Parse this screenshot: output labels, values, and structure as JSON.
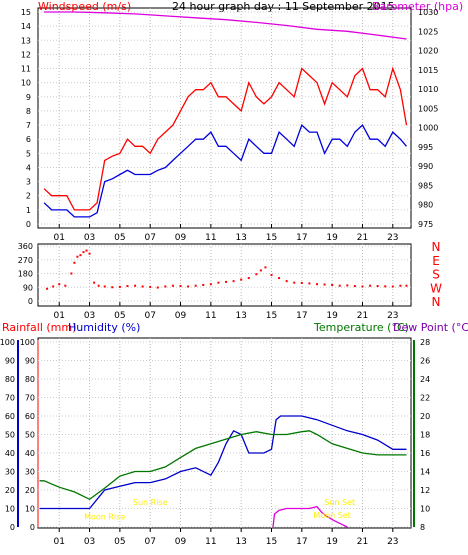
{
  "colors": {
    "wind_speed": "#ff0000",
    "wind_gust": "#ff0000",
    "wind_avg": "#0000dd",
    "barometer": "#dd00dd",
    "wind_dir": "#ff0000",
    "rain_axis": "#ff0000",
    "humidity": "#0000cc",
    "temperature": "#007700",
    "dewpoint_label": "#7a00aa",
    "sun_moon": "#ffee00",
    "frame": "#000000"
  },
  "chart_data": [
    {
      "type": "line",
      "name": "wind-barometer",
      "title": "24 hour graph day : 11 September 2015",
      "left_label": "Windspeed (m/s)",
      "right_label": "Barometer (hpa)",
      "x_ticks": [
        "01",
        "03",
        "05",
        "07",
        "09",
        "11",
        "13",
        "15",
        "17",
        "19",
        "21",
        "23"
      ],
      "ylim_left": [
        0,
        15
      ],
      "y_ticks_left": [
        "0",
        "1",
        "2",
        "3",
        "4",
        "5",
        "6",
        "7",
        "8",
        "9",
        "10",
        "11",
        "12",
        "13",
        "14",
        "15"
      ],
      "ylim_right": [
        975,
        1030
      ],
      "y_ticks_right": [
        "975",
        "980",
        "985",
        "990",
        "995",
        "1000",
        "1005",
        "1010",
        "1015",
        "1020",
        "1025",
        "1030"
      ],
      "series": [
        {
          "key": "gust",
          "x": [
            0,
            0.5,
            1.0,
            1.5,
            2.0,
            2.5,
            3.0,
            3.5,
            4.0,
            4.5,
            5.0,
            5.5,
            6.0,
            6.5,
            7.0,
            7.5,
            8.0,
            8.5,
            9.0,
            9.5,
            10.0,
            10.5,
            11.0,
            11.5,
            12.0,
            12.5,
            13.0,
            13.5,
            14.0,
            14.5,
            15.0,
            15.5,
            16.0,
            16.5,
            17.0,
            17.5,
            18.0,
            18.5,
            19.0,
            19.5,
            20.0,
            20.5,
            21.0,
            21.5,
            22.0,
            22.5,
            23.0,
            23.5,
            23.9
          ],
          "values": [
            2.5,
            2.0,
            2.0,
            2.0,
            1.0,
            1.0,
            1.0,
            1.5,
            4.5,
            4.8,
            5.0,
            6.0,
            5.5,
            5.5,
            5.0,
            6.0,
            6.5,
            7.0,
            8.0,
            9.0,
            9.5,
            9.5,
            10.0,
            9.0,
            9.0,
            8.5,
            8.0,
            10.0,
            9.0,
            8.5,
            9.0,
            10.0,
            9.5,
            9.0,
            11.0,
            10.5,
            10.0,
            8.5,
            10.0,
            9.5,
            9.0,
            10.5,
            11.0,
            9.5,
            9.5,
            9.0,
            11.0,
            9.5,
            7.0
          ]
        },
        {
          "key": "avg",
          "x": [
            0,
            0.5,
            1.0,
            1.5,
            2.0,
            2.5,
            3.0,
            3.5,
            4.0,
            4.5,
            5.0,
            5.5,
            6.0,
            6.5,
            7.0,
            7.5,
            8.0,
            8.5,
            9.0,
            9.5,
            10.0,
            10.5,
            11.0,
            11.5,
            12.0,
            12.5,
            13.0,
            13.5,
            14.0,
            14.5,
            15.0,
            15.5,
            16.0,
            16.5,
            17.0,
            17.5,
            18.0,
            18.5,
            19.0,
            19.5,
            20.0,
            20.5,
            21.0,
            21.5,
            22.0,
            22.5,
            23.0,
            23.5,
            23.9
          ],
          "values": [
            1.5,
            1.0,
            1.0,
            1.0,
            0.5,
            0.5,
            0.5,
            0.8,
            3.0,
            3.2,
            3.5,
            3.8,
            3.5,
            3.5,
            3.5,
            3.8,
            4.0,
            4.5,
            5.0,
            5.5,
            6.0,
            6.0,
            6.5,
            5.5,
            5.5,
            5.0,
            4.5,
            6.0,
            5.5,
            5.0,
            5.0,
            6.5,
            6.0,
            5.5,
            7.0,
            6.5,
            6.5,
            5.0,
            6.0,
            6.0,
            5.5,
            6.5,
            7.0,
            6.0,
            6.0,
            5.5,
            6.5,
            6.0,
            5.5
          ]
        },
        {
          "key": "baro",
          "x": [
            0,
            2,
            4,
            6,
            8,
            10,
            12,
            14,
            16,
            18,
            20,
            22,
            23.9
          ],
          "values": [
            1030,
            1030,
            1029.8,
            1029.5,
            1029,
            1028.5,
            1028,
            1027.3,
            1026.5,
            1025.5,
            1025,
            1024,
            1023
          ]
        }
      ]
    },
    {
      "type": "scatter",
      "name": "wind-direction",
      "x_ticks": [
        "01",
        "03",
        "05",
        "07",
        "09",
        "11",
        "13",
        "15",
        "17",
        "19",
        "21",
        "23"
      ],
      "ylim": [
        0,
        360
      ],
      "y_ticks": [
        "0",
        "90",
        "180",
        "270",
        "360"
      ],
      "compass_labels": [
        "N",
        "W",
        "S",
        "E",
        "N"
      ],
      "x": [
        0.2,
        0.6,
        1.0,
        1.4,
        1.8,
        2.0,
        2.2,
        2.4,
        2.6,
        2.8,
        3.0,
        3.3,
        3.6,
        4.0,
        4.5,
        5.0,
        5.5,
        6.0,
        6.5,
        7.0,
        7.5,
        8.0,
        8.5,
        9.0,
        9.5,
        10.0,
        10.5,
        11.0,
        11.5,
        12.0,
        12.5,
        13.0,
        13.5,
        14.0,
        14.3,
        14.6,
        15.0,
        15.5,
        16.0,
        16.5,
        17.0,
        17.5,
        18.0,
        18.5,
        19.0,
        19.5,
        20.0,
        20.5,
        21.0,
        21.5,
        22.0,
        22.5,
        23.0,
        23.5,
        23.9
      ],
      "values": [
        80,
        95,
        110,
        100,
        180,
        250,
        290,
        300,
        320,
        330,
        310,
        120,
        100,
        95,
        90,
        92,
        98,
        100,
        95,
        92,
        88,
        95,
        100,
        98,
        95,
        100,
        105,
        110,
        120,
        125,
        130,
        140,
        150,
        175,
        200,
        220,
        170,
        150,
        130,
        120,
        118,
        115,
        110,
        108,
        105,
        100,
        102,
        98,
        95,
        100,
        98,
        96,
        95,
        100,
        100
      ]
    },
    {
      "type": "line",
      "name": "rain-humidity-temperature",
      "left_label": "Rainfall (mm)",
      "left_label_2": "Humidity (%)",
      "right_label": "Temperature (°C)",
      "right_label_2": "Dew Point (°C)",
      "x_ticks": [
        "01",
        "03",
        "05",
        "07",
        "09",
        "11",
        "13",
        "15",
        "17",
        "19",
        "21",
        "23"
      ],
      "ylim_left": [
        0,
        100
      ],
      "y_ticks_left": [
        "0",
        "10",
        "20",
        "30",
        "40",
        "50",
        "60",
        "70",
        "80",
        "90",
        "100"
      ],
      "ylim_right": [
        8,
        28
      ],
      "y_ticks_right": [
        "8",
        "10",
        "12",
        "14",
        "16",
        "18",
        "20",
        "22",
        "24",
        "26",
        "28"
      ],
      "series": [
        {
          "key": "humidity",
          "x": [
            -0.3,
            0.0,
            1.0,
            2.0,
            3.0,
            4.0,
            5.0,
            6.0,
            7.0,
            8.0,
            9.0,
            10.0,
            11.0,
            11.5,
            12.0,
            12.5,
            13.0,
            13.5,
            14.0,
            14.5,
            15.0,
            15.3,
            15.6,
            16.0,
            17.0,
            18.0,
            19.0,
            20.0,
            21.0,
            22.0,
            23.0,
            23.9
          ],
          "values": [
            10,
            10,
            10,
            10,
            10,
            20,
            22,
            24,
            24,
            26,
            30,
            32,
            28,
            35,
            45,
            52,
            50,
            40,
            40,
            40,
            42,
            58,
            60,
            60,
            60,
            58,
            55,
            52,
            50,
            47,
            42,
            42
          ]
        },
        {
          "key": "temperature",
          "x": [
            -0.3,
            0.0,
            1.0,
            2.0,
            3.0,
            4.0,
            5.0,
            6.0,
            7.0,
            8.0,
            9.0,
            10.0,
            11.0,
            12.0,
            13.0,
            14.0,
            15.0,
            16.0,
            17.0,
            17.5,
            18.0,
            19.0,
            20.0,
            21.0,
            22.0,
            23.0,
            23.9
          ],
          "values": [
            13.0,
            13.0,
            12.3,
            11.8,
            11.0,
            12.2,
            13.5,
            14.0,
            14.0,
            14.5,
            15.5,
            16.5,
            17.0,
            17.5,
            18.0,
            18.3,
            18.0,
            18.0,
            18.3,
            18.4,
            18.0,
            17.0,
            16.5,
            16.0,
            15.8,
            15.8,
            15.8
          ]
        },
        {
          "key": "rain",
          "x": [
            15.1,
            15.2,
            15.5,
            16.0,
            16.5,
            17.0,
            17.5,
            18.0,
            18.3,
            18.6,
            19.0,
            19.5,
            20.0
          ],
          "values": [
            0,
            7,
            9,
            10,
            10,
            10,
            10,
            11,
            8,
            6,
            4,
            2,
            0
          ]
        }
      ],
      "annotations": [
        {
          "text": "Sun Rise",
          "x": 7.0,
          "y": 12
        },
        {
          "text": "Moon Rise",
          "x": 4.0,
          "y": 4
        },
        {
          "text": "Sun Set",
          "x": 19.5,
          "y": 12
        },
        {
          "text": "Moon Set",
          "x": 19.0,
          "y": 5
        }
      ]
    }
  ]
}
